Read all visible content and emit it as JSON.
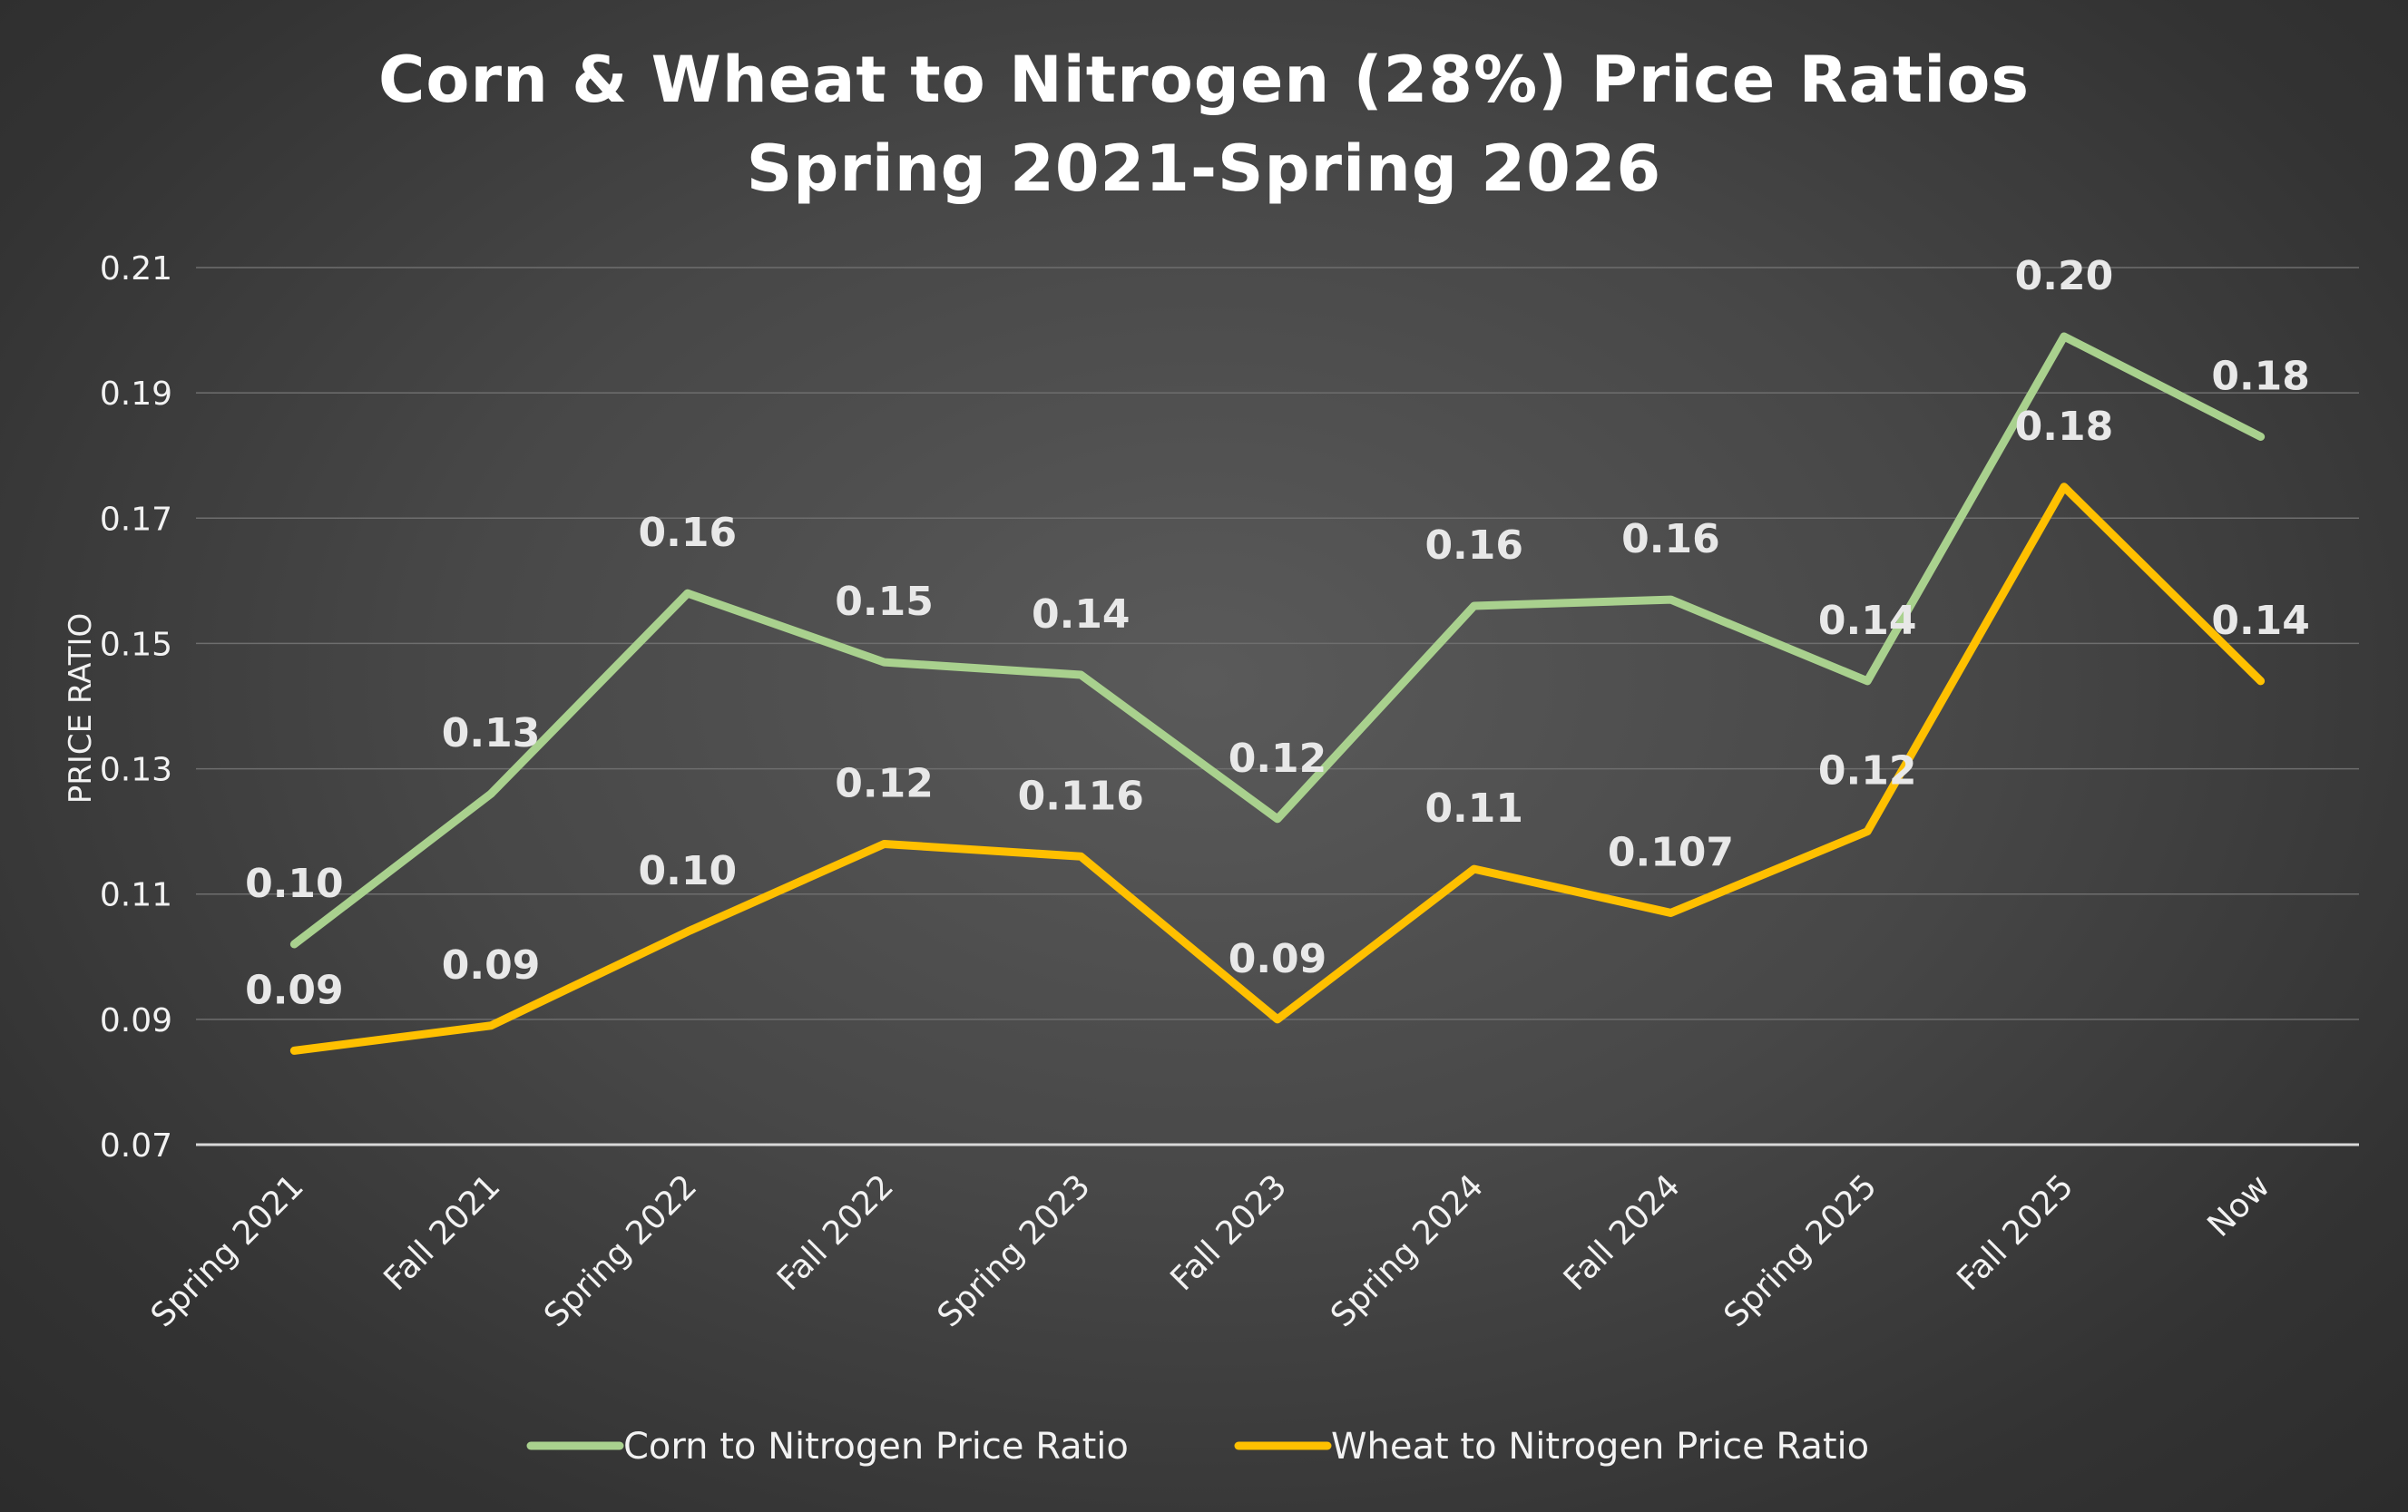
{
  "colors": {
    "corn": "#a9d18e",
    "wheat": "#ffc000",
    "grid": "#6e6e6e",
    "axis": "#d9d9d9"
  },
  "chart_data": {
    "type": "line",
    "title": [
      "Corn & Wheat to Nitrogen (28%) Price Ratios",
      "Spring 2021-Spring 2026"
    ],
    "xlabel": "",
    "ylabel": "PRICE RATIO",
    "ylim": [
      0.07,
      0.21
    ],
    "yticks": [
      0.07,
      0.09,
      0.11,
      0.13,
      0.15,
      0.17,
      0.19,
      0.21
    ],
    "ytick_labels": [
      "0.07",
      "0.09",
      "0.11",
      "0.13",
      "0.15",
      "0.17",
      "0.19",
      "0.21"
    ],
    "categories": [
      "Spring 2021",
      "Fall 2021",
      "Spring 2022",
      "Fall 2022",
      "Spring 2023",
      "Fall 2023",
      "Spring 2024",
      "Fall 2024",
      "Spring 2025",
      "Fall 2025",
      "Now"
    ],
    "legend_position": "bottom",
    "series": [
      {
        "name": "Corn to Nitrogen Price Ratio",
        "color_key": "corn",
        "values": [
          0.102,
          0.126,
          0.158,
          0.147,
          0.145,
          0.122,
          0.156,
          0.157,
          0.144,
          0.199,
          0.183
        ],
        "labels": [
          "0.10",
          "0.13",
          "0.16",
          "0.15",
          "0.14",
          "0.12",
          "0.16",
          "0.16",
          "0.14",
          "0.20",
          "0.18"
        ]
      },
      {
        "name": "Wheat to Nitrogen Price Ratio",
        "color_key": "wheat",
        "values": [
          0.085,
          0.089,
          0.104,
          0.118,
          0.116,
          0.09,
          0.114,
          0.107,
          0.12,
          0.175,
          0.144
        ],
        "labels": [
          "0.09",
          "0.09",
          "0.10",
          "0.12",
          "0.116",
          "0.09",
          "0.11",
          "0.107",
          "0.12",
          "0.18",
          "0.14"
        ]
      }
    ]
  }
}
